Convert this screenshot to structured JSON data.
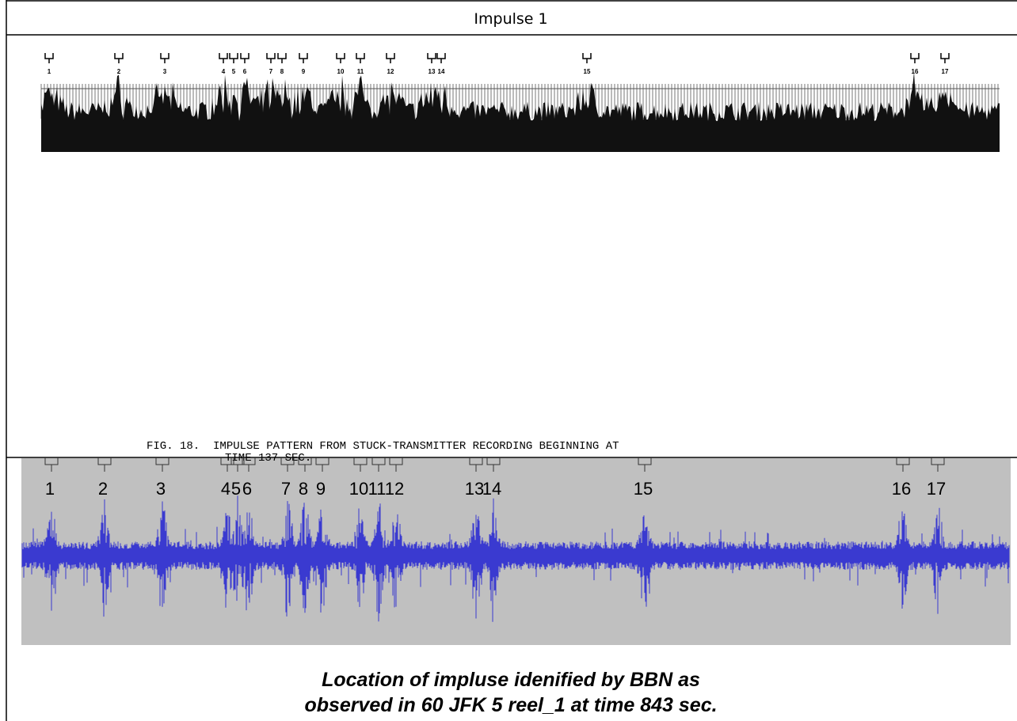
{
  "header": {
    "title": "Impulse 1"
  },
  "figure_top": {
    "markers": [
      "1",
      "2",
      "3",
      "4",
      "5",
      "6",
      "7",
      "8",
      "9",
      "10",
      "11",
      "12",
      "13",
      "14",
      "15",
      "16",
      "17"
    ],
    "caption": [
      "FIG. 18.  IMPULSE PATTERN FROM STUCK-TRANSMITTER RECORDING BEGINNING AT",
      "TIME 137 SEC."
    ]
  },
  "figure_bottom": {
    "markers": [
      "1",
      "2",
      "3",
      "4",
      "5",
      "6",
      "7",
      "8",
      "9",
      "10",
      "11",
      "12",
      "13",
      "14",
      "15",
      "16",
      "17"
    ],
    "caption": [
      "Location of impluse idenified by BBN as",
      "observed in 60 JFK 5 reel_1 at time 843 sec."
    ]
  }
}
